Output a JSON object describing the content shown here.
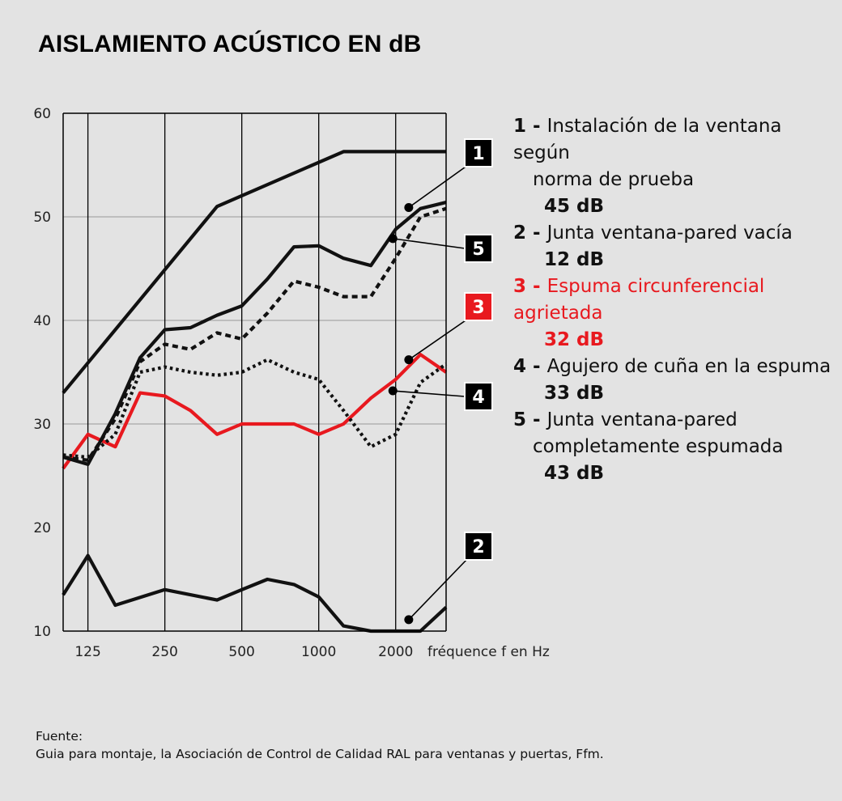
{
  "title": "AISLAMIENTO ACÚSTICO EN dB",
  "legend": [
    {
      "num": "1",
      "sep": " - ",
      "text": "Instalación de la ventana según",
      "text2": "norma de prueba",
      "value": "45 dB",
      "red": false
    },
    {
      "num": "2",
      "sep": " - ",
      "text": "Junta ventana-pared vacía",
      "text2": "",
      "value": "12 dB",
      "red": false
    },
    {
      "num": "3",
      "sep": " - ",
      "text": "Espuma circunferencial agrietada",
      "text2": "",
      "value": "32 dB",
      "red": true
    },
    {
      "num": "4",
      "sep": " - ",
      "text": "Agujero de cuña en la espuma",
      "text2": "",
      "value": "33 dB",
      "red": false
    },
    {
      "num": "5",
      "sep": " - ",
      "text": "Junta ventana-pared",
      "text2": "completamente espumada",
      "value": "43 dB",
      "red": false
    }
  ],
  "source": {
    "label": "Fuente:",
    "text": "Guia para montaje, la Asociación de Control de Calidad RAL para ventanas y puertas, Ffm."
  },
  "chart_data": {
    "type": "line",
    "xlabel": "fréquence f en Hz",
    "ylabel": "",
    "ylim": [
      10,
      60
    ],
    "yticks": [
      10,
      20,
      30,
      40,
      50,
      60
    ],
    "xscale": "log (third-octave)",
    "xticks": [
      {
        "label": "125",
        "x": 125
      },
      {
        "label": "250",
        "x": 250
      },
      {
        "label": "500",
        "x": 500
      },
      {
        "label": "1000",
        "x": 1000
      },
      {
        "label": "2000",
        "x": 2000
      }
    ],
    "xlim": [
      100,
      3150
    ],
    "grid": "vertical lines at octave ticks and at axis edges, horizontal lines at 30, 40, 50",
    "series": [
      {
        "name": "1",
        "color": "#111111",
        "style": "solid",
        "x": [
          100,
          400,
          1250,
          3150
        ],
        "y": [
          33,
          51,
          56.3,
          56.3
        ]
      },
      {
        "name": "2",
        "color": "#111111",
        "style": "solid",
        "x": [
          100,
          125,
          160,
          250,
          400,
          500,
          630,
          800,
          1000,
          1250,
          1600,
          2000,
          2500,
          3150
        ],
        "y": [
          13.5,
          17.3,
          12.5,
          14,
          13,
          14,
          15,
          14.5,
          13.3,
          10.5,
          10,
          10,
          10,
          12.3
        ]
      },
      {
        "name": "3",
        "color": "#e8191f",
        "style": "solid",
        "x": [
          100,
          125,
          160,
          200,
          250,
          315,
          400,
          500,
          630,
          800,
          1000,
          1250,
          1600,
          2000,
          2500,
          3150
        ],
        "y": [
          25.7,
          29,
          27.8,
          33,
          32.7,
          31.3,
          29,
          30,
          30,
          30,
          29,
          30,
          32.5,
          34.3,
          36.7,
          35
        ]
      },
      {
        "name": "4",
        "color": "#111111",
        "style": "dotted",
        "x": [
          100,
          125,
          160,
          200,
          250,
          315,
          400,
          500,
          630,
          800,
          1000,
          1250,
          1600,
          2000,
          2500,
          3150
        ],
        "y": [
          27,
          26.8,
          29,
          35,
          35.5,
          35,
          34.7,
          35,
          36.2,
          35,
          34.3,
          31.3,
          27.8,
          29,
          34,
          35.8
        ]
      },
      {
        "name": "5",
        "color": "#111111",
        "style": "dashed",
        "x": [
          100,
          125,
          160,
          200,
          250,
          315,
          400,
          500,
          630,
          800,
          1000,
          1250,
          1600,
          2000,
          2500,
          3150
        ],
        "y": [
          26.8,
          26.5,
          30.5,
          36,
          37.7,
          37.2,
          38.8,
          38.2,
          40.7,
          43.8,
          43.2,
          42.3,
          42.3,
          46,
          50,
          50.8
        ]
      },
      {
        "name": "",
        "color": "#111111",
        "style": "solid",
        "x": [
          100,
          125,
          160,
          200,
          250,
          315,
          400,
          500,
          630,
          800,
          1000,
          1250,
          1600,
          2000,
          2500,
          3150
        ],
        "y": [
          26.8,
          26.1,
          31,
          36.4,
          39.1,
          39.3,
          40.5,
          41.4,
          44,
          47.1,
          47.2,
          46,
          45.3,
          48.8,
          50.8,
          51.4
        ]
      }
    ],
    "markers": [
      {
        "label": "1",
        "point": {
          "x": 2250,
          "y": 50.9
        },
        "red": false
      },
      {
        "label": "2",
        "point": {
          "x": 2250,
          "y": 11.1
        },
        "red": false
      },
      {
        "label": "3",
        "point": {
          "x": 2250,
          "y": 36.2
        },
        "red": true
      },
      {
        "label": "4",
        "point": {
          "x": 1950,
          "y": 33.2
        },
        "red": false
      },
      {
        "label": "5",
        "point": {
          "x": 1950,
          "y": 47.9
        },
        "red": false
      }
    ]
  }
}
